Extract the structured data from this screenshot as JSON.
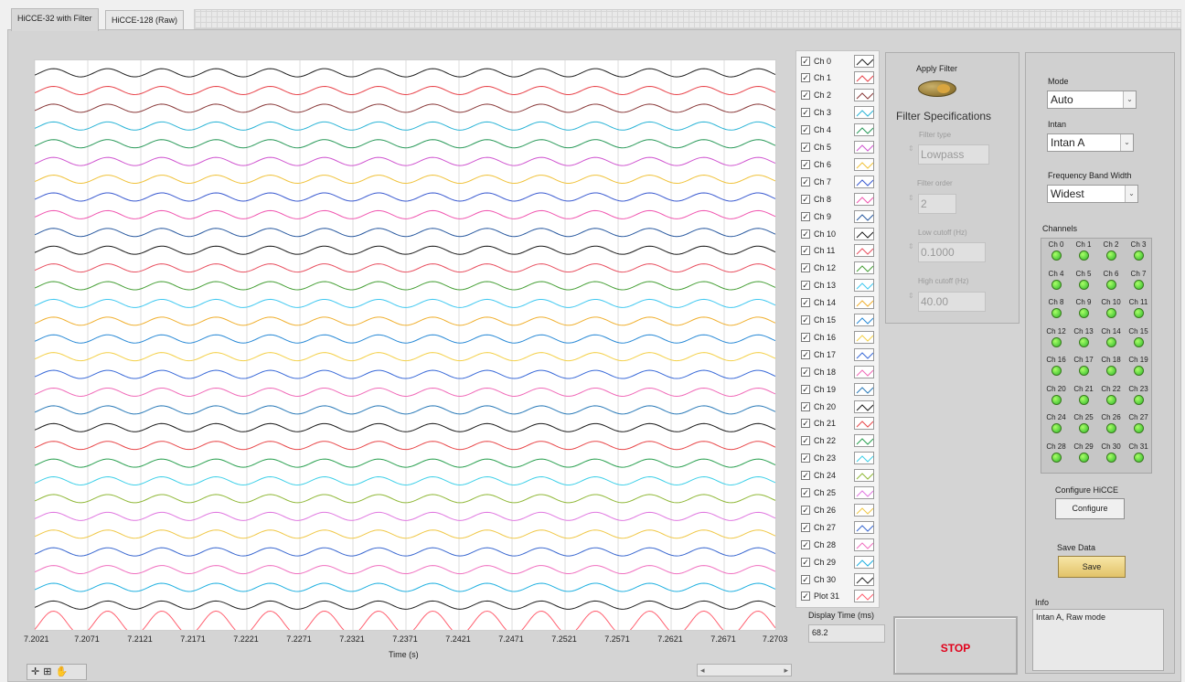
{
  "tabs": [
    {
      "label": "HiCCE-32 with Filter"
    },
    {
      "label": "HiCCE-128 (Raw)"
    }
  ],
  "chart_data": {
    "type": "line",
    "xlabel": "Time (s)",
    "xlim": [
      7.2021,
      7.2703
    ],
    "x_ticks": [
      "7.2021",
      "7.2071",
      "7.2121",
      "7.2171",
      "7.2221",
      "7.2271",
      "7.2321",
      "7.2371",
      "7.2421",
      "7.2471",
      "7.2521",
      "7.2571",
      "7.2621",
      "7.2671",
      "7.2703"
    ],
    "grid": true,
    "cycles_in_window": 13.7,
    "series_colors": [
      "#222222",
      "#e8434a",
      "#8a3a3a",
      "#2bb4d6",
      "#2a9a5a",
      "#d057d0",
      "#f0c23a",
      "#3a5ad0",
      "#f057b0",
      "#2a5aa0",
      "#1a1a1a",
      "#e85060",
      "#48a038",
      "#40c8f0",
      "#f0b030",
      "#2a8ad6",
      "#f4d048",
      "#3a6ad8",
      "#f06ab8",
      "#2a7ab8",
      "#1a1a1a",
      "#e8484a",
      "#2aa050",
      "#40d0e8",
      "#90b838",
      "#e078e0",
      "#f0c848",
      "#3a68d0",
      "#f070c0",
      "#20b0e0",
      "#222222",
      "#ff6070"
    ],
    "series": [
      {
        "name": "Ch 0",
        "amplitude": 0.35
      },
      {
        "name": "Ch 1",
        "amplitude": 0.35
      },
      {
        "name": "Ch 2",
        "amplitude": 0.35
      },
      {
        "name": "Ch 3",
        "amplitude": 0.35
      },
      {
        "name": "Ch 4",
        "amplitude": 0.35
      },
      {
        "name": "Ch 5",
        "amplitude": 0.35
      },
      {
        "name": "Ch 6",
        "amplitude": 0.35
      },
      {
        "name": "Ch 7",
        "amplitude": 0.35
      },
      {
        "name": "Ch 8",
        "amplitude": 0.35
      },
      {
        "name": "Ch 9",
        "amplitude": 0.35
      },
      {
        "name": "Ch 10",
        "amplitude": 0.35
      },
      {
        "name": "Ch 11",
        "amplitude": 0.35
      },
      {
        "name": "Ch 12",
        "amplitude": 0.35
      },
      {
        "name": "Ch 13",
        "amplitude": 0.35
      },
      {
        "name": "Ch 14",
        "amplitude": 0.35
      },
      {
        "name": "Ch 15",
        "amplitude": 0.35
      },
      {
        "name": "Ch 16",
        "amplitude": 0.35
      },
      {
        "name": "Ch 17",
        "amplitude": 0.35
      },
      {
        "name": "Ch 18",
        "amplitude": 0.35
      },
      {
        "name": "Ch 19",
        "amplitude": 0.35
      },
      {
        "name": "Ch 20",
        "amplitude": 0.35
      },
      {
        "name": "Ch 21",
        "amplitude": 0.35
      },
      {
        "name": "Ch 22",
        "amplitude": 0.35
      },
      {
        "name": "Ch 23",
        "amplitude": 0.35
      },
      {
        "name": "Ch 24",
        "amplitude": 0.35
      },
      {
        "name": "Ch 25",
        "amplitude": 0.35
      },
      {
        "name": "Ch 26",
        "amplitude": 0.35
      },
      {
        "name": "Ch 27",
        "amplitude": 0.35
      },
      {
        "name": "Ch 28",
        "amplitude": 0.35
      },
      {
        "name": "Ch 29",
        "amplitude": 0.35
      },
      {
        "name": "Ch 30",
        "amplitude": 0.35
      },
      {
        "name": "Plot 31",
        "amplitude": 1.0
      }
    ]
  },
  "display_time": {
    "label": "Display Time (ms)",
    "value": "68.2"
  },
  "stop_label": "STOP",
  "filter": {
    "apply_label": "Apply Filter",
    "title": "Filter Specifications",
    "type_label": "Filter type",
    "type_value": "Lowpass",
    "order_label": "Filter order",
    "order_value": "2",
    "low_label": "Low cutoff (Hz)",
    "low_value": "0.1000",
    "high_label": "High cutoff (Hz)",
    "high_value": "40.00"
  },
  "settings": {
    "mode_label": "Mode",
    "mode_value": "Auto",
    "intan_label": "Intan",
    "intan_value": "Intan A",
    "band_label": "Frequency Band Width",
    "band_value": "Widest",
    "channels_label": "Channels",
    "configure_label": "Configure HiCCE",
    "configure_button": "Configure",
    "save_label": "Save Data",
    "save_button": "Save",
    "info_label": "Info",
    "info_value": "Intan A, Raw mode"
  },
  "toolbar_icons": [
    "cursor-icon",
    "zoom-icon",
    "pan-icon"
  ]
}
